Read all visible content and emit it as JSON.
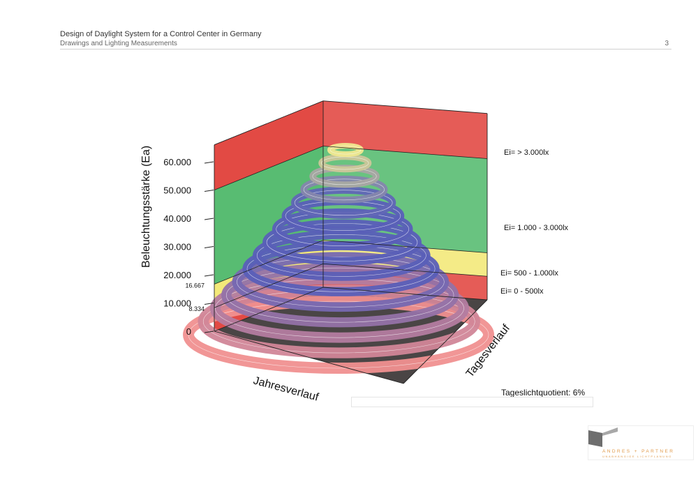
{
  "header": {
    "title": "Design of Daylight System for a Control Center in Germany",
    "subtitle": "Drawings and Lighting Measurements",
    "page_number": "3"
  },
  "colors": {
    "zone_red": "#e0403a",
    "zone_green": "#4fb86a",
    "zone_yellow": "#f2e872",
    "floor": "#4a4545",
    "ribbon_low": "#f09090",
    "ribbon_mid": "#5a5fb8",
    "ribbon_high": "#f0e890",
    "logo_accent": "#e09a4a"
  },
  "chart_data": {
    "type": "surface3d",
    "ylabel": "Beleuchtungsstärke (Ea)",
    "xlabel": "Jahresverlauf",
    "zlabel": "Tagesverlauf",
    "y_ticks": [
      "60.000",
      "50.000",
      "40.000",
      "30.000",
      "20.000",
      "10.000",
      "0"
    ],
    "y_ticks_minor": [
      "16.667",
      "8.334"
    ],
    "ylim": [
      0,
      66000
    ],
    "zones": [
      {
        "label": "Ei= > 3.000lx",
        "from": 50000,
        "to": 66000,
        "color": "red"
      },
      {
        "label": "Ei= 1.000 - 3.000lx",
        "from": 16667,
        "to": 50000,
        "color": "green"
      },
      {
        "label": "Ei= 500 - 1.000lx",
        "from": 8334,
        "to": 16667,
        "color": "yellow"
      },
      {
        "label": "Ei= 0 - 500lx",
        "from": 0,
        "to": 8334,
        "color": "red"
      }
    ],
    "annotation": "Tageslichtquotient: 6%"
  },
  "logo": {
    "name": "ANDRES + PARTNER",
    "tagline": "UNABHÄNGIGE LICHTPLANUNG"
  }
}
